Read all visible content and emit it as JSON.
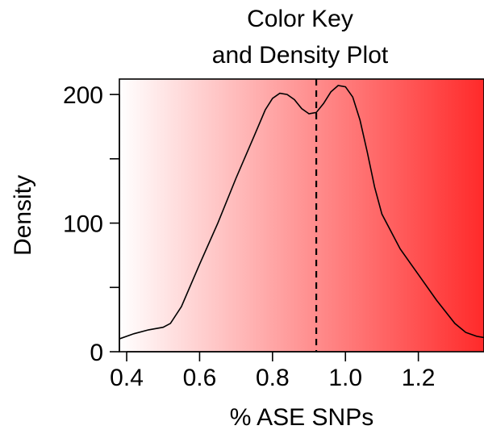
{
  "chart_data": {
    "type": "area",
    "title_lines": [
      "Color Key",
      "and Density Plot"
    ],
    "xlabel": "% ASE SNPs",
    "ylabel": "Density",
    "xlim": [
      0.38,
      1.38
    ],
    "ylim": [
      0,
      212
    ],
    "x_ticks": [
      0.4,
      0.6,
      0.8,
      1.0,
      1.2
    ],
    "x_tick_labels": [
      "0.4",
      "0.6",
      "0.8",
      "1.0",
      "1.2"
    ],
    "y_ticks": [
      0,
      50,
      100,
      150,
      200
    ],
    "y_tick_labels": [
      "0",
      "",
      "100",
      "",
      "200"
    ],
    "color_key": {
      "low": "#ffffff",
      "high": "#ff2a2a"
    },
    "reference_line_x": 0.92,
    "grid": false,
    "series": [
      {
        "x": [
          0.38,
          0.42,
          0.46,
          0.5,
          0.52,
          0.55,
          0.6,
          0.65,
          0.7,
          0.75,
          0.78,
          0.8,
          0.82,
          0.84,
          0.86,
          0.88,
          0.9,
          0.92,
          0.94,
          0.96,
          0.98,
          1.0,
          1.02,
          1.04,
          1.06,
          1.08,
          1.1,
          1.15,
          1.2,
          1.25,
          1.3,
          1.33,
          1.36,
          1.38
        ],
        "y": [
          10,
          14,
          17,
          19,
          22,
          35,
          68,
          100,
          135,
          168,
          188,
          197,
          201,
          200,
          196,
          189,
          185,
          186,
          193,
          202,
          207,
          206,
          198,
          180,
          155,
          128,
          107,
          80,
          60,
          40,
          22,
          15,
          12,
          11
        ]
      }
    ]
  }
}
